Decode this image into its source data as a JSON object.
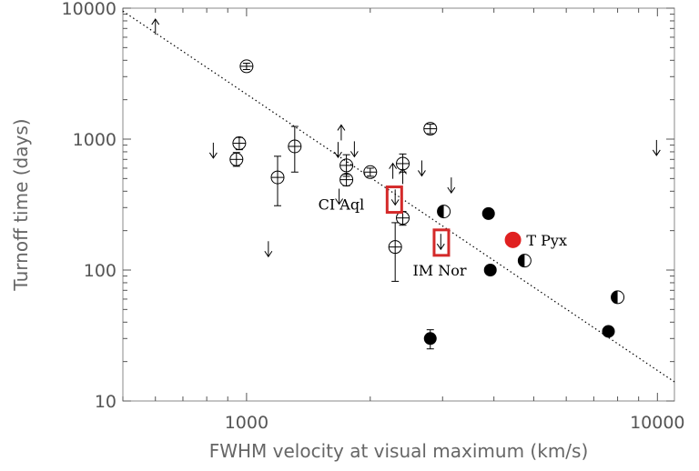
{
  "chart_data": {
    "type": "scatter",
    "xlabel": "FWHM velocity at visual maximum (km/s)",
    "ylabel": "Turnoff time (days)",
    "xscale": "log",
    "yscale": "log",
    "xlim": [
      500,
      11000
    ],
    "ylim": [
      10,
      10000
    ],
    "x_ticks": [
      {
        "value": 1000,
        "label": "1000"
      },
      {
        "value": 10000,
        "label": "10000"
      }
    ],
    "y_ticks": [
      {
        "value": 10,
        "label": "10"
      },
      {
        "value": 100,
        "label": "100"
      },
      {
        "value": 1000,
        "label": "1000"
      },
      {
        "value": 10000,
        "label": "10000"
      }
    ],
    "grid": false,
    "fit_line": {
      "style": "dotted",
      "points": [
        [
          500,
          9500
        ],
        [
          11000,
          14
        ]
      ]
    },
    "series": [
      {
        "marker": "open-circle-errorbar",
        "points": [
          {
            "x": 1000,
            "y": 3600,
            "yerr_low": 3400,
            "yerr_high": 3800
          },
          {
            "x": 945,
            "y": 700,
            "yerr_low": 620,
            "yerr_high": 790
          },
          {
            "x": 960,
            "y": 930,
            "yerr_low": 830,
            "yerr_high": 1030
          },
          {
            "x": 1190,
            "y": 510,
            "yerr_low": 310,
            "yerr_high": 740
          },
          {
            "x": 1310,
            "y": 880,
            "yerr_low": 560,
            "yerr_high": 1250
          },
          {
            "x": 1750,
            "y": 630,
            "yerr_low": 520,
            "yerr_high": 760
          },
          {
            "x": 1750,
            "y": 490,
            "yerr_low": 440,
            "yerr_high": 540
          },
          {
            "x": 2000,
            "y": 560,
            "yerr_low": 520,
            "yerr_high": 600
          },
          {
            "x": 2400,
            "y": 650,
            "yerr_low": 560,
            "yerr_high": 770
          },
          {
            "x": 2400,
            "y": 250,
            "yerr_low": 220,
            "yerr_high": 280
          },
          {
            "x": 2300,
            "y": 150,
            "yerr_low": 82,
            "yerr_high": 230
          },
          {
            "x": 2800,
            "y": 1200,
            "yerr_low": 1100,
            "yerr_high": 1300
          }
        ]
      },
      {
        "marker": "filled-circle",
        "points": [
          {
            "x": 2800,
            "y": 30,
            "yerr_low": 25,
            "yerr_high": 35
          },
          {
            "x": 3880,
            "y": 270
          },
          {
            "x": 3920,
            "y": 100
          },
          {
            "x": 7600,
            "y": 34
          }
        ]
      },
      {
        "marker": "half-filled-circle",
        "points": [
          {
            "x": 3020,
            "y": 280
          },
          {
            "x": 4750,
            "y": 118
          },
          {
            "x": 8000,
            "y": 62
          }
        ]
      },
      {
        "marker": "up-arrow",
        "points": [
          {
            "x": 600,
            "y": 7200
          },
          {
            "x": 1700,
            "y": 1120
          },
          {
            "x": 2270,
            "y": 570
          },
          {
            "x": 2400,
            "y": 520
          }
        ]
      },
      {
        "marker": "down-arrow",
        "points": [
          {
            "x": 830,
            "y": 820
          },
          {
            "x": 1130,
            "y": 145
          },
          {
            "x": 1670,
            "y": 830
          },
          {
            "x": 1830,
            "y": 840
          },
          {
            "x": 1680,
            "y": 365
          },
          {
            "x": 2670,
            "y": 600
          },
          {
            "x": 3150,
            "y": 445
          },
          {
            "x": 9950,
            "y": 860
          },
          {
            "x": 2300,
            "y": 360
          },
          {
            "x": 2970,
            "y": 165
          }
        ]
      },
      {
        "marker": "red-filled-circle",
        "color": "#e02020",
        "points": [
          {
            "x": 4450,
            "y": 170
          }
        ]
      }
    ],
    "highlights": [
      {
        "x": 2290,
        "y": 345,
        "color": "#d42a2a"
      },
      {
        "x": 2980,
        "y": 162,
        "color": "#d42a2a"
      }
    ],
    "annotations": [
      {
        "text": "CI Aql",
        "x": 1700,
        "y": 320,
        "anchor": "middle"
      },
      {
        "text": "T Pyx",
        "x": 4800,
        "y": 170,
        "anchor": "start"
      },
      {
        "text": "IM Nor",
        "x": 2950,
        "y": 100,
        "anchor": "middle"
      }
    ]
  }
}
